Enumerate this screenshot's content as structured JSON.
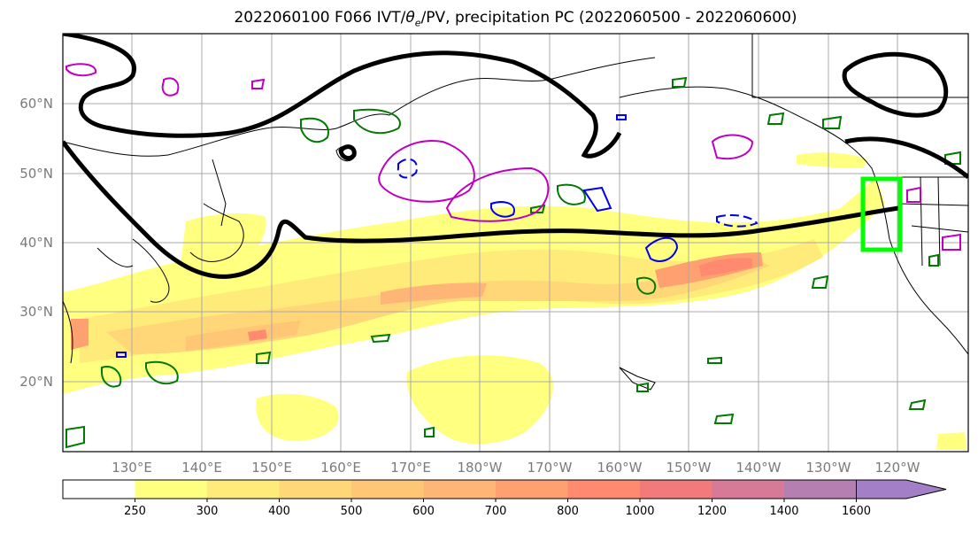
{
  "title": {
    "prefix": "2022060100 F066 IVT/",
    "theta": "θ",
    "sub": "e",
    "suffix": "/PV, precipitation PC (2022060500 - 2022060600)"
  },
  "lat_labels": [
    "60°N",
    "50°N",
    "40°N",
    "30°N",
    "20°N"
  ],
  "lon_labels": [
    "130°E",
    "140°E",
    "150°E",
    "160°E",
    "170°E",
    "180°W",
    "170°W",
    "160°W",
    "150°W",
    "140°W",
    "130°W",
    "120°W"
  ],
  "colorbar": {
    "ticks": [
      "250",
      "300",
      "400",
      "500",
      "600",
      "700",
      "800",
      "1000",
      "1200",
      "1400",
      "1600"
    ],
    "colors": [
      "#ffffff",
      "#ffff80",
      "#ffeb7a",
      "#ffd778",
      "#ffc676",
      "#ffb575",
      "#ffa071",
      "#ff8a6f",
      "#f27a7a",
      "#d77a98",
      "#b67fb2",
      "#a27fc6"
    ]
  },
  "legend_colors": {
    "theta_e": "#000000",
    "pv_negative": "#0000ee",
    "pv_positive": "#c000c0",
    "precip": "#007a00",
    "target_box": "#00ff00"
  }
}
